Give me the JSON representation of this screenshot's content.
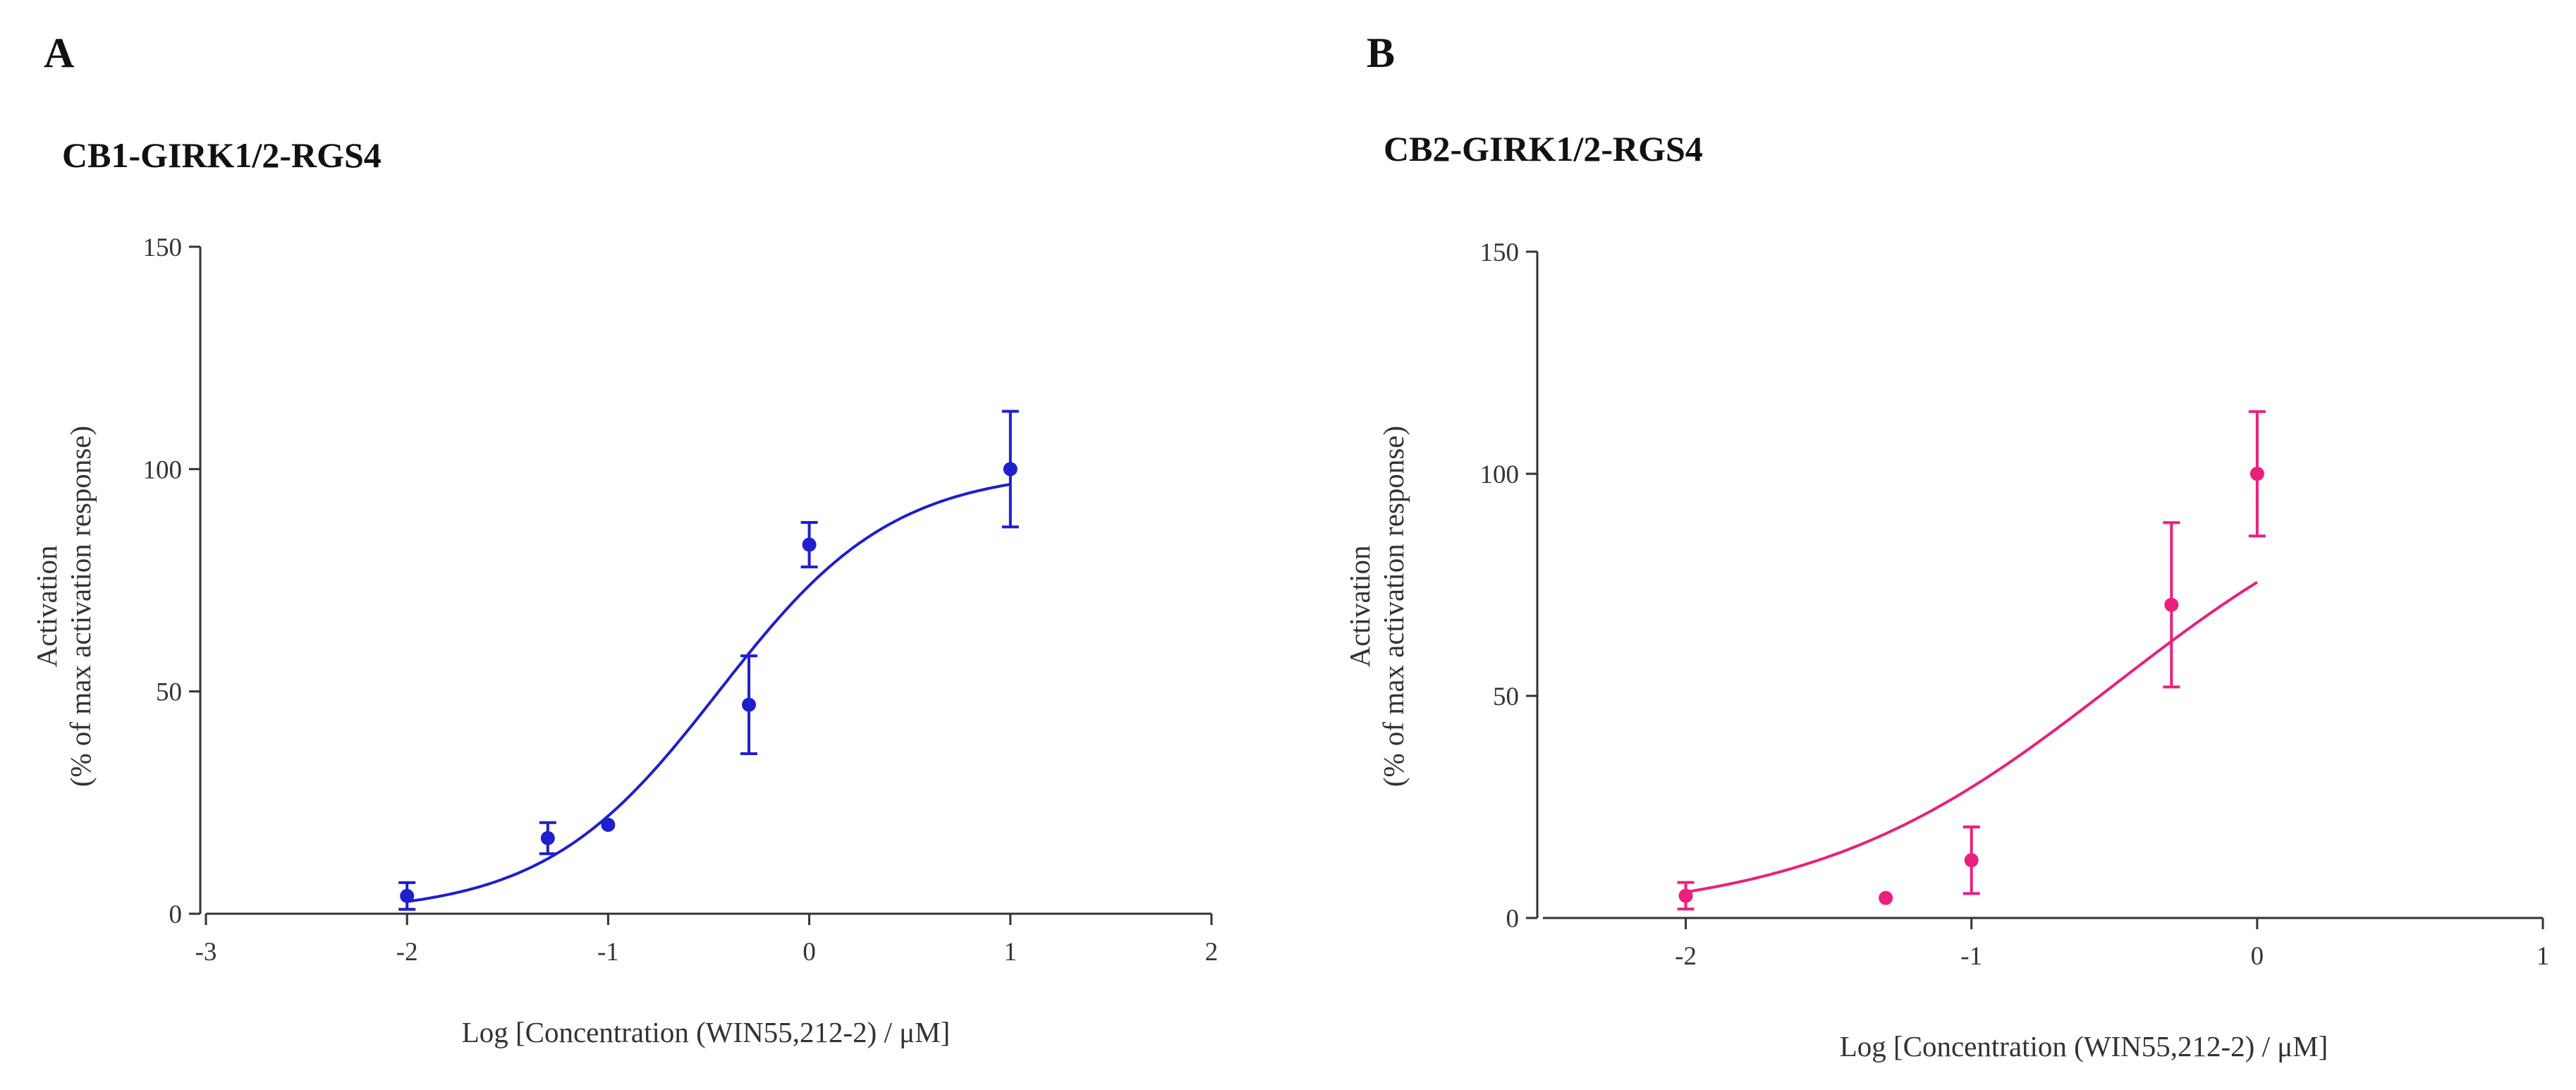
{
  "chart_data": [
    {
      "type": "scatter",
      "panel_label": "A",
      "title": "CB1-GIRK1/2-RGS4",
      "xlabel": "Log [Concentration (WIN55,212-2) / μM]",
      "ylabel_line1": "Activation",
      "ylabel_line2": "(% of max activation response)",
      "xlim": [
        -3,
        2
      ],
      "ylim": [
        0,
        150
      ],
      "xticks": [
        -3,
        -2,
        -1,
        0,
        1,
        2
      ],
      "yticks": [
        0,
        50,
        100,
        150
      ],
      "color": "#1f1fcc",
      "points": [
        {
          "x": -2,
          "y": 4,
          "err": 3
        },
        {
          "x": -1.3,
          "y": 17,
          "err": 3.5
        },
        {
          "x": -1,
          "y": 20,
          "err": 0
        },
        {
          "x": -0.3,
          "y": 47,
          "err": 11
        },
        {
          "x": 0,
          "y": 83,
          "err": 5
        },
        {
          "x": 1,
          "y": 100,
          "err": 13
        }
      ],
      "fit": {
        "bottom": 0,
        "top": 100,
        "logEC50": -0.45,
        "hill": 1.0,
        "x_range": [
          -2,
          1
        ]
      }
    },
    {
      "type": "scatter",
      "panel_label": "B",
      "title": "CB2-GIRK1/2-RGS4",
      "xlabel": "Log [Concentration (WIN55,212-2) / μM]",
      "ylabel_line1": "Activation",
      "ylabel_line2": "(% of max activation response)",
      "xlim": [
        -2.5,
        1
      ],
      "ylim": [
        0,
        150
      ],
      "xticks": [
        -2,
        -1,
        0,
        1
      ],
      "yticks": [
        0,
        50,
        100,
        150
      ],
      "color": "#e8207e",
      "points": [
        {
          "x": -2,
          "y": 5,
          "err": 3
        },
        {
          "x": -1.3,
          "y": 4.5,
          "err": 0
        },
        {
          "x": -1,
          "y": 13,
          "err": 7.5
        },
        {
          "x": -0.3,
          "y": 70.5,
          "err": 18.5
        },
        {
          "x": 0,
          "y": 100,
          "err": 14
        }
      ],
      "fit": {
        "bottom": 0,
        "top": 105,
        "logEC50": -0.5,
        "hill": 0.82,
        "x_range": [
          -2,
          0
        ]
      }
    }
  ]
}
